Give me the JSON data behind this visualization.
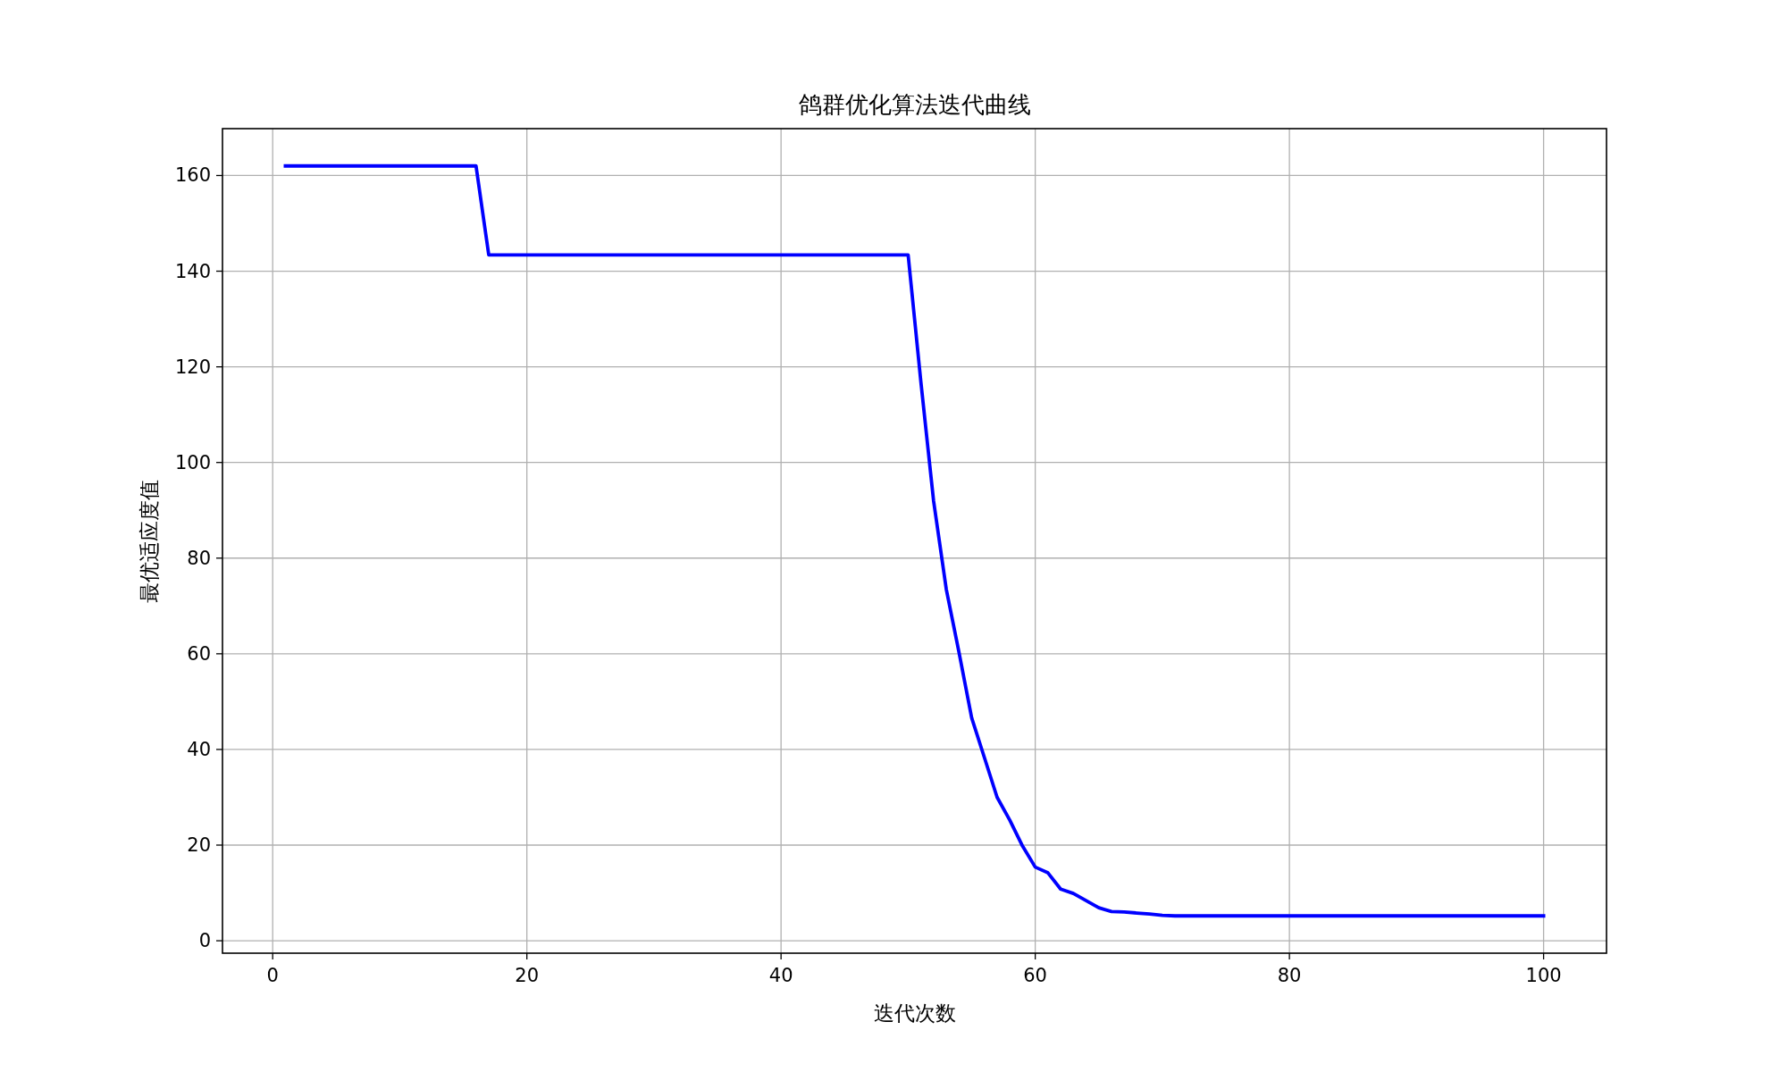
{
  "chart_data": {
    "type": "line",
    "title": "鸽群优化算法迭代曲线",
    "xlabel": "迭代次数",
    "ylabel": "最优适应度值",
    "x": [
      1,
      2,
      3,
      4,
      5,
      6,
      7,
      8,
      9,
      10,
      11,
      12,
      13,
      14,
      15,
      16,
      17,
      18,
      19,
      20,
      21,
      22,
      23,
      24,
      25,
      26,
      27,
      28,
      29,
      30,
      31,
      32,
      33,
      34,
      35,
      36,
      37,
      38,
      39,
      40,
      41,
      42,
      43,
      44,
      45,
      46,
      47,
      48,
      49,
      50,
      51,
      52,
      53,
      54,
      55,
      56,
      57,
      58,
      59,
      60,
      61,
      62,
      63,
      64,
      65,
      66,
      67,
      68,
      69,
      70,
      71,
      72,
      73,
      74,
      75,
      76,
      77,
      78,
      79,
      80,
      81,
      82,
      83,
      84,
      85,
      86,
      87,
      88,
      89,
      90,
      91,
      92,
      93,
      94,
      95,
      96,
      97,
      98,
      99,
      100
    ],
    "series": [
      {
        "color": "#0000ff",
        "values": [
          162.0,
          162.0,
          162.0,
          162.0,
          162.0,
          162.0,
          162.0,
          162.0,
          162.0,
          162.0,
          162.0,
          162.0,
          162.0,
          162.0,
          162.0,
          162.0,
          143.4,
          143.4,
          143.4,
          143.4,
          143.4,
          143.4,
          143.4,
          143.4,
          143.4,
          143.4,
          143.4,
          143.4,
          143.4,
          143.4,
          143.4,
          143.4,
          143.4,
          143.4,
          143.4,
          143.4,
          143.4,
          143.4,
          143.4,
          143.4,
          143.4,
          143.4,
          143.4,
          143.4,
          143.4,
          143.4,
          143.4,
          143.4,
          143.4,
          143.4,
          116.9,
          92.0,
          73.5,
          60.3,
          46.6,
          38.3,
          30.0,
          25.2,
          19.8,
          15.4,
          14.2,
          10.8,
          9.9,
          8.4,
          6.9,
          6.1,
          6.0,
          5.8,
          5.6,
          5.3,
          5.2,
          5.2,
          5.2,
          5.2,
          5.2,
          5.2,
          5.2,
          5.2,
          5.2,
          5.2,
          5.2,
          5.2,
          5.2,
          5.2,
          5.2,
          5.2,
          5.2,
          5.2,
          5.2,
          5.2,
          5.2,
          5.2,
          5.2,
          5.2,
          5.2,
          5.2,
          5.2,
          5.2,
          5.2,
          5.2
        ]
      }
    ],
    "xlim": [
      -3.95,
      104.95
    ],
    "ylim": [
      -2.6,
      169.8
    ],
    "xticks": [
      0,
      20,
      40,
      60,
      80,
      100
    ],
    "yticks": [
      0,
      20,
      40,
      60,
      80,
      100,
      120,
      140,
      160
    ],
    "grid": true
  }
}
